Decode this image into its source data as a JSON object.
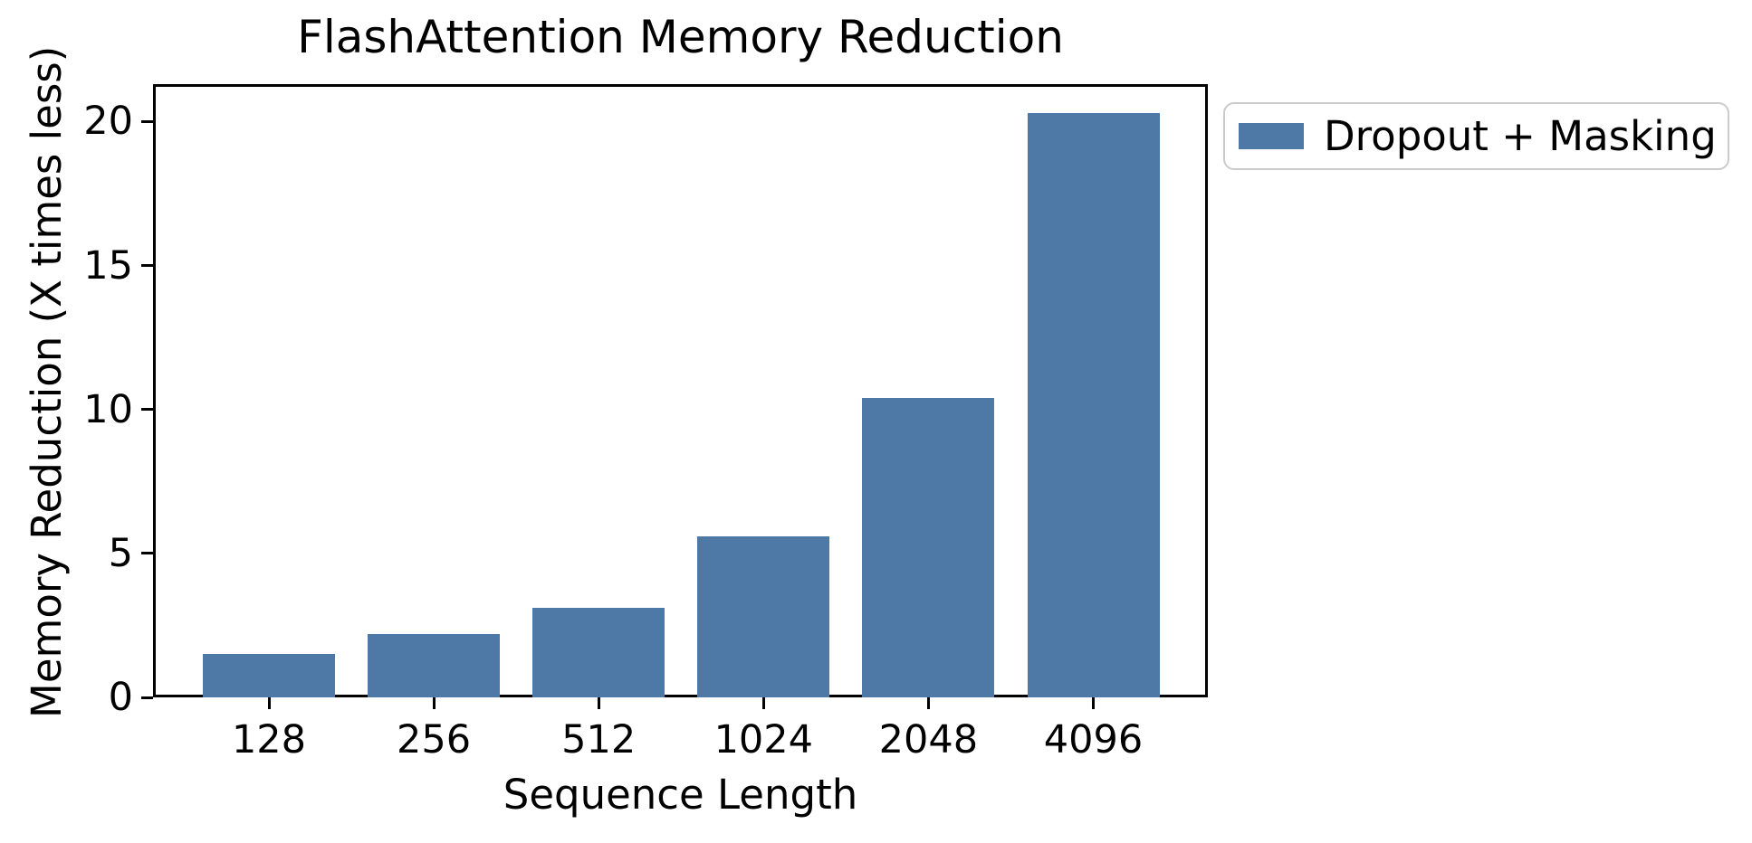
{
  "figure": {
    "title": "FlashAttention Memory Reduction"
  },
  "legend": {
    "label": "Dropout + Masking"
  },
  "chart_data": {
    "type": "bar",
    "title": "FlashAttention Memory Reduction",
    "categories": [
      "128",
      "256",
      "512",
      "1024",
      "2048",
      "4096"
    ],
    "series": [
      {
        "name": "Dropout + Masking",
        "values": [
          1.5,
          2.2,
          3.1,
          5.6,
          10.4,
          20.3
        ]
      }
    ],
    "xlabel": "Sequence Length",
    "ylabel": "Memory Reduction (X times less)",
    "yticks": [
      0,
      5,
      10,
      15,
      20
    ],
    "ylim": [
      0,
      21.3
    ],
    "bar_color": "#4E79A7",
    "axis_color": "#000000",
    "legend_border_color": "#cbcbcb",
    "legend_position": "outside-right",
    "grid": false
  }
}
